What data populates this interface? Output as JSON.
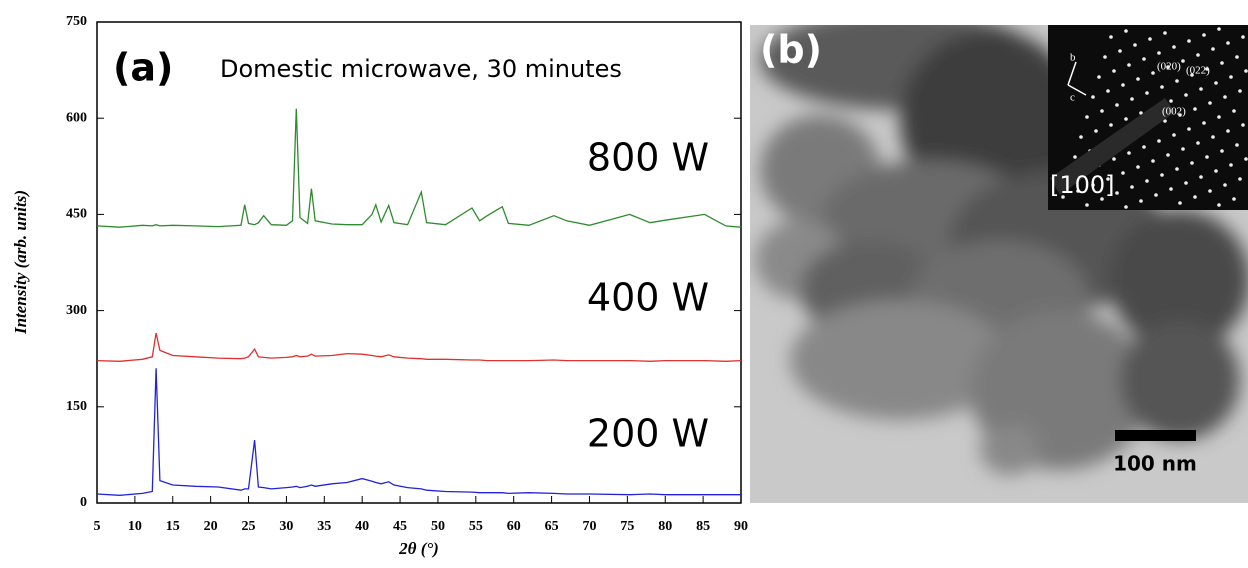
{
  "chart_data": {
    "type": "line",
    "annotations": [
      "(a)",
      "Domestic microwave, 30 minutes"
    ],
    "x_label": "2θ (°)",
    "y_label": "Intensity (arb. units)",
    "x": [
      5,
      8,
      11,
      12.3,
      12.8,
      13.3,
      15,
      18,
      21,
      24,
      24.5,
      25,
      25.8,
      26.3,
      27,
      28,
      30,
      30.8,
      31.3,
      31.8,
      32.8,
      33.3,
      33.8,
      36,
      38,
      40,
      41.3,
      41.8,
      42.5,
      43.5,
      44.2,
      46,
      47.8,
      48.5,
      51,
      54.5,
      55.5,
      56.5,
      58.5,
      59.3,
      62,
      65.3,
      67,
      70,
      75.3,
      78,
      80,
      85.2,
      88,
      90
    ],
    "series": [
      {
        "name": "800 W",
        "color": "#2e8b2e",
        "values": [
          432,
          430,
          433,
          432,
          434,
          432,
          433,
          432,
          431,
          433,
          465,
          436,
          434,
          437,
          448,
          434,
          433,
          440,
          615,
          445,
          436,
          490,
          440,
          435,
          434,
          434,
          450,
          465,
          438,
          464,
          437,
          434,
          485,
          437,
          434,
          460,
          440,
          448,
          462,
          436,
          433,
          448,
          440,
          433,
          450,
          437,
          441,
          450,
          432,
          430
        ]
      },
      {
        "name": "400 W",
        "color": "#e03030",
        "values": [
          222,
          221,
          224,
          228,
          265,
          238,
          230,
          228,
          226,
          225,
          226,
          228,
          240,
          228,
          227,
          226,
          227,
          228,
          230,
          228,
          229,
          232,
          229,
          230,
          233,
          232,
          230,
          229,
          228,
          231,
          228,
          226,
          225,
          224,
          224,
          223,
          223,
          222,
          222,
          222,
          222,
          223,
          222,
          222,
          222,
          221,
          222,
          222,
          221,
          222
        ]
      },
      {
        "name": "200 W",
        "color": "#2222dd",
        "values": [
          14,
          12,
          15,
          18,
          210,
          35,
          28,
          26,
          25,
          20,
          22,
          22,
          98,
          25,
          24,
          22,
          24,
          25,
          26,
          24,
          26,
          28,
          26,
          30,
          32,
          38,
          34,
          32,
          30,
          33,
          28,
          24,
          22,
          20,
          18,
          17,
          16,
          16,
          16,
          15,
          16,
          15,
          14,
          14,
          13,
          14,
          13,
          13,
          13,
          13
        ]
      }
    ],
    "xlim": [
      5,
      90
    ],
    "xticks": [
      5,
      10,
      15,
      20,
      25,
      30,
      35,
      40,
      45,
      50,
      55,
      60,
      65,
      70,
      75,
      80,
      85,
      90
    ],
    "ylim": [
      0,
      750
    ],
    "yticks": [
      0,
      150,
      300,
      450,
      600,
      750
    ],
    "grid": false
  },
  "image_panel": {
    "label": "(b)",
    "zone_axis": "[100]",
    "scale_bar": "100 nm",
    "axes": [
      "b",
      "c"
    ],
    "spots": [
      "(020)",
      "(022)",
      "(002)"
    ]
  }
}
